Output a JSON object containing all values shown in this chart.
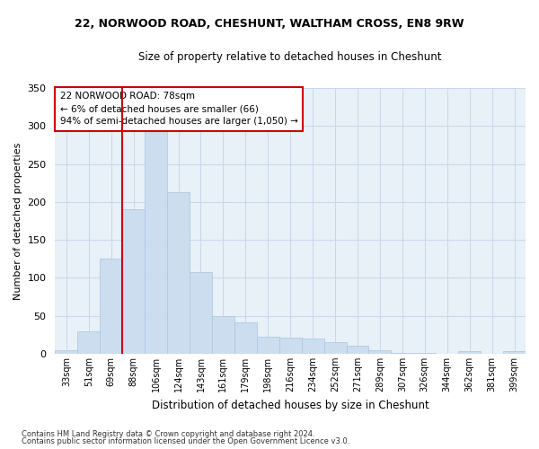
{
  "title1": "22, NORWOOD ROAD, CHESHUNT, WALTHAM CROSS, EN8 9RW",
  "title2": "Size of property relative to detached houses in Cheshunt",
  "xlabel": "Distribution of detached houses by size in Cheshunt",
  "ylabel": "Number of detached properties",
  "categories": [
    "33sqm",
    "51sqm",
    "69sqm",
    "88sqm",
    "106sqm",
    "124sqm",
    "143sqm",
    "161sqm",
    "179sqm",
    "198sqm",
    "216sqm",
    "234sqm",
    "252sqm",
    "271sqm",
    "289sqm",
    "307sqm",
    "326sqm",
    "344sqm",
    "362sqm",
    "381sqm",
    "399sqm"
  ],
  "values": [
    5,
    29,
    125,
    190,
    295,
    213,
    107,
    50,
    41,
    22,
    21,
    20,
    15,
    10,
    5,
    1,
    1,
    0,
    4,
    0,
    3
  ],
  "bar_color": "#ccddf0",
  "bar_edge_color": "#aac4e0",
  "vline_color": "#cc0000",
  "annotation_title": "22 NORWOOD ROAD: 78sqm",
  "annotation_line1": "← 6% of detached houses are smaller (66)",
  "annotation_line2": "94% of semi-detached houses are larger (1,050) →",
  "annotation_box_color": "#cc0000",
  "ylim": [
    0,
    350
  ],
  "yticks": [
    0,
    50,
    100,
    150,
    200,
    250,
    300,
    350
  ],
  "footnote1": "Contains HM Land Registry data © Crown copyright and database right 2024.",
  "footnote2": "Contains public sector information licensed under the Open Government Licence v3.0.",
  "bg_color": "#ffffff",
  "grid_color": "#c8d8ea",
  "ax_bg_color": "#e8f0f8"
}
